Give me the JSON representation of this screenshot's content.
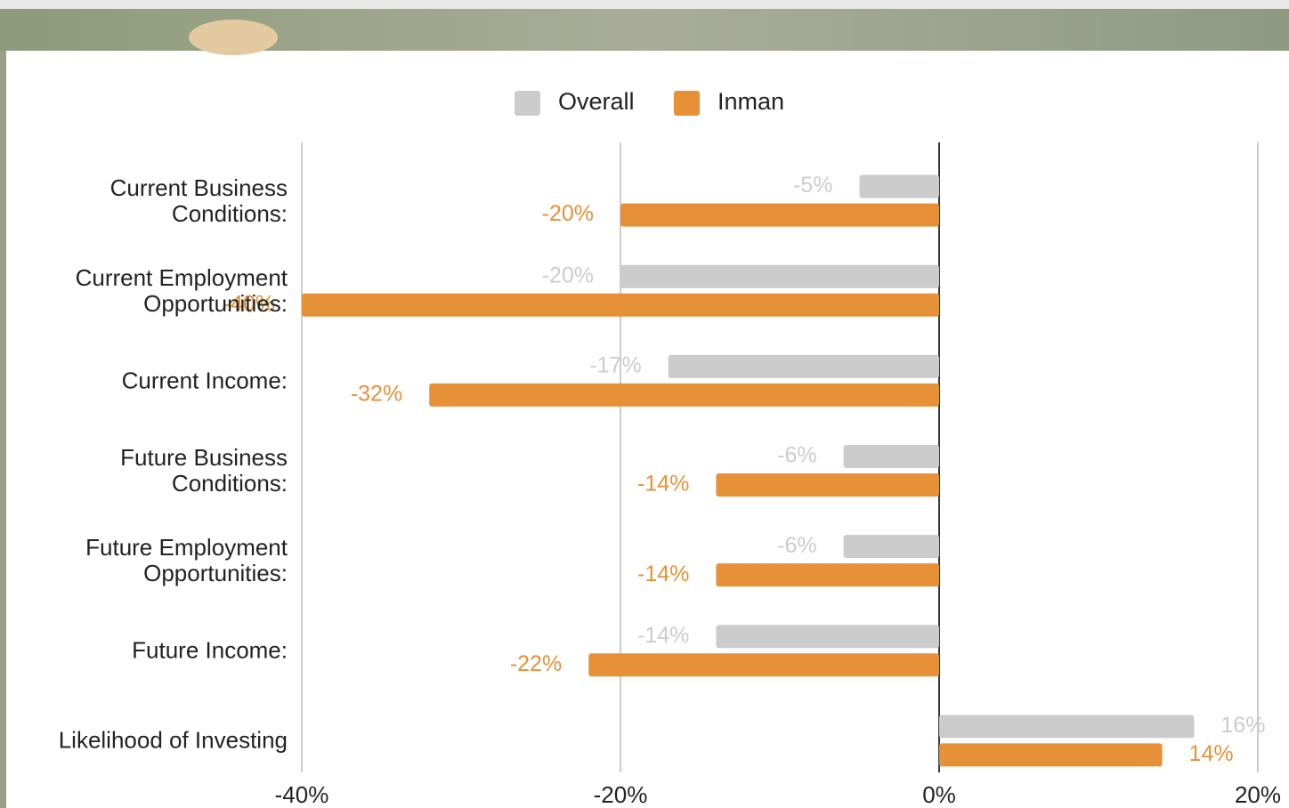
{
  "chart_data": {
    "type": "bar",
    "orientation": "horizontal",
    "categories": [
      "Current Business Conditions:",
      "Current Employment Opportunities:",
      "Current Income:",
      "Future Business Conditions:",
      "Future Employment Opportunities:",
      "Future Income:",
      "Likelihood of Investing"
    ],
    "series": [
      {
        "name": "Overall",
        "color": "#cccccc",
        "values": [
          -5,
          -20,
          -17,
          -6,
          -6,
          -14,
          16
        ],
        "value_labels": [
          "-5%",
          "-20%",
          "-17%",
          "-6%",
          "-6%",
          "-14%",
          "16%"
        ]
      },
      {
        "name": "Inman",
        "color": "#e69138",
        "values": [
          -20,
          -40,
          -32,
          -14,
          -14,
          -22,
          14
        ],
        "value_labels": [
          "-20%",
          "-40%",
          "-32%",
          "-14%",
          "-14%",
          "-22%",
          "14%"
        ]
      }
    ],
    "xlim": [
      -40,
      20
    ],
    "xticks": [
      {
        "value": -40,
        "label": "-40%"
      },
      {
        "value": -20,
        "label": "-20%"
      },
      {
        "value": 0,
        "label": "0%"
      },
      {
        "value": 20,
        "label": "20%"
      }
    ],
    "grid": true,
    "legend": "top"
  }
}
